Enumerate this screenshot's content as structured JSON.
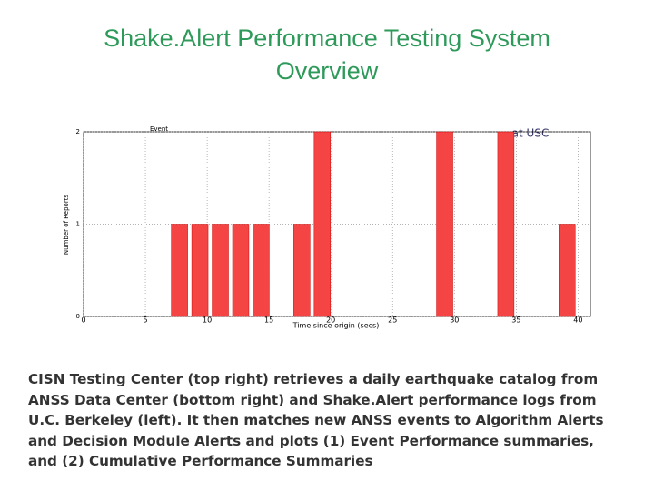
{
  "title": "Shake.Alert Performance Testing System Overview",
  "annotation": "at USC",
  "chart_data": {
    "type": "histogram",
    "title": "Event",
    "xlabel": "Time since origin (secs)",
    "ylabel": "Number of Reports",
    "bins": [
      7.1,
      8.75,
      10.4,
      12.05,
      13.7,
      15.35,
      17.0,
      18.65,
      20.3,
      21.95,
      23.6,
      25.25,
      26.9,
      28.55,
      30.2,
      31.85,
      33.5,
      35.15,
      36.8,
      38.45,
      40.1
    ],
    "counts": [
      1,
      1,
      1,
      1,
      1,
      0,
      1,
      2,
      0,
      0,
      0,
      0,
      0,
      2,
      0,
      0,
      2,
      0,
      0,
      1
    ],
    "color": "#f44444",
    "xlim": [
      0,
      41
    ],
    "xticks": [
      0,
      5,
      10,
      15,
      20,
      25,
      30,
      35,
      40
    ],
    "ylim": [
      0,
      2
    ],
    "yticks": [
      0,
      1,
      2
    ],
    "grid": true
  },
  "caption": [
    "CISN Testing Center (top right) retrieves a daily earthquake catalog from",
    "ANSS Data Center (bottom right) and Shake.Alert performance logs from",
    "U.C. Berkeley (left). It then matches new ANSS events to Algorithm Alerts",
    "and Decision Module Alerts and plots (1) Event Performance summaries,",
    "and (2) Cumulative Performance Summaries"
  ]
}
